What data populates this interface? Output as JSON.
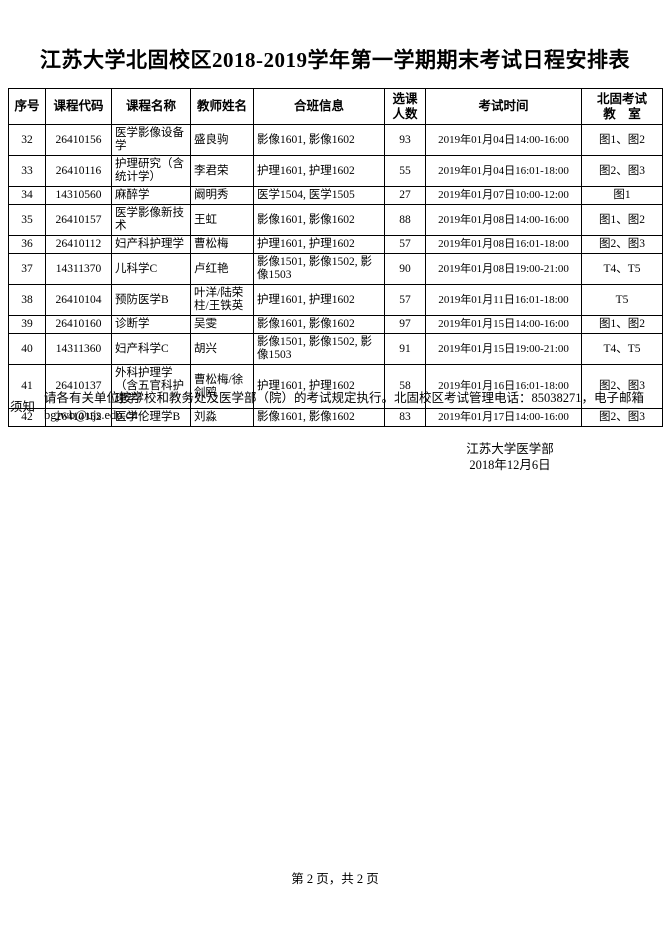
{
  "doc": {
    "title": "江苏大学北固校区2018-2019学年第一学期期末考试日程安排表",
    "page_footer": "第 2 页，共 2 页"
  },
  "table": {
    "headers": [
      {
        "lines": [
          "序号"
        ]
      },
      {
        "lines": [
          "课程代码"
        ]
      },
      {
        "lines": [
          "课程名称"
        ]
      },
      {
        "lines": [
          "教师姓名"
        ]
      },
      {
        "lines": [
          "合班信息"
        ]
      },
      {
        "lines": [
          "选课",
          "人数"
        ]
      },
      {
        "lines": [
          "考试时间"
        ]
      },
      {
        "lines": [
          "北固考试",
          "教　室"
        ]
      }
    ],
    "rows": [
      {
        "no": "32",
        "code": "26410156",
        "course": "医学影像设备学",
        "teacher": "盛良驹",
        "classes": "影像1601, 影像1602",
        "count": "93",
        "time": "2019年01月04日14:00-16:00",
        "room": "图1、图2"
      },
      {
        "no": "33",
        "code": "26410116",
        "course": "护理研究（含统计学）",
        "teacher": "李君荣",
        "classes": "护理1601, 护理1602",
        "count": "55",
        "time": "2019年01月04日16:01-18:00",
        "room": "图2、图3"
      },
      {
        "no": "34",
        "code": "14310560",
        "course": "麻醉学",
        "teacher": "阚明秀",
        "classes": "医学1504, 医学1505",
        "count": "27",
        "time": "2019年01月07日10:00-12:00",
        "room": "图1"
      },
      {
        "no": "35",
        "code": "26410157",
        "course": "医学影像新技术",
        "teacher": "王虹",
        "classes": "影像1601, 影像1602",
        "count": "88",
        "time": "2019年01月08日14:00-16:00",
        "room": "图1、图2"
      },
      {
        "no": "36",
        "code": "26410112",
        "course": "妇产科护理学",
        "teacher": "曹松梅",
        "classes": "护理1601, 护理1602",
        "count": "57",
        "time": "2019年01月08日16:01-18:00",
        "room": "图2、图3"
      },
      {
        "no": "37",
        "code": "14311370",
        "course": "儿科学C",
        "teacher": "卢红艳",
        "classes": "影像1501, 影像1502, 影像1503",
        "count": "90",
        "time": "2019年01月08日19:00-21:00",
        "room": "T4、T5"
      },
      {
        "no": "38",
        "code": "26410104",
        "course": "预防医学B",
        "teacher": "叶洋/陆荣柱/王铁英",
        "classes": "护理1601, 护理1602",
        "count": "57",
        "time": "2019年01月11日16:01-18:00",
        "room": "T5"
      },
      {
        "no": "39",
        "code": "26410160",
        "course": "诊断学",
        "teacher": "吴雯",
        "classes": "影像1601, 影像1602",
        "count": "97",
        "time": "2019年01月15日14:00-16:00",
        "room": "图1、图2"
      },
      {
        "no": "40",
        "code": "14311360",
        "course": "妇产科学C",
        "teacher": "胡兴",
        "classes": "影像1501, 影像1502, 影像1503",
        "count": "91",
        "time": "2019年01月15日19:00-21:00",
        "room": "T4、T5"
      },
      {
        "no": "41",
        "code": "26410137",
        "course": "外科护理学（含五官科护理学）",
        "teacher": "曹松梅/徐剑鸥",
        "classes": "护理1601, 护理1602",
        "count": "58",
        "time": "2019年01月16日16:01-18:00",
        "room": "图2、图3"
      },
      {
        "no": "42",
        "code": "26410152",
        "course": "医学伦理学B",
        "teacher": "刘淼",
        "classes": "影像1601, 影像1602",
        "count": "83",
        "time": "2019年01月17日14:00-16:00",
        "room": "图2、图3"
      }
    ]
  },
  "notice": {
    "label": "须知",
    "text": "请各有关单位按学校和教务处及医学部（院）的考试规定执行。北固校区考试管理电话：85038271，电子邮箱bgjwb@ujs.edu.cn"
  },
  "signature": {
    "org": "江苏大学医学部",
    "date": "2018年12月6日"
  }
}
